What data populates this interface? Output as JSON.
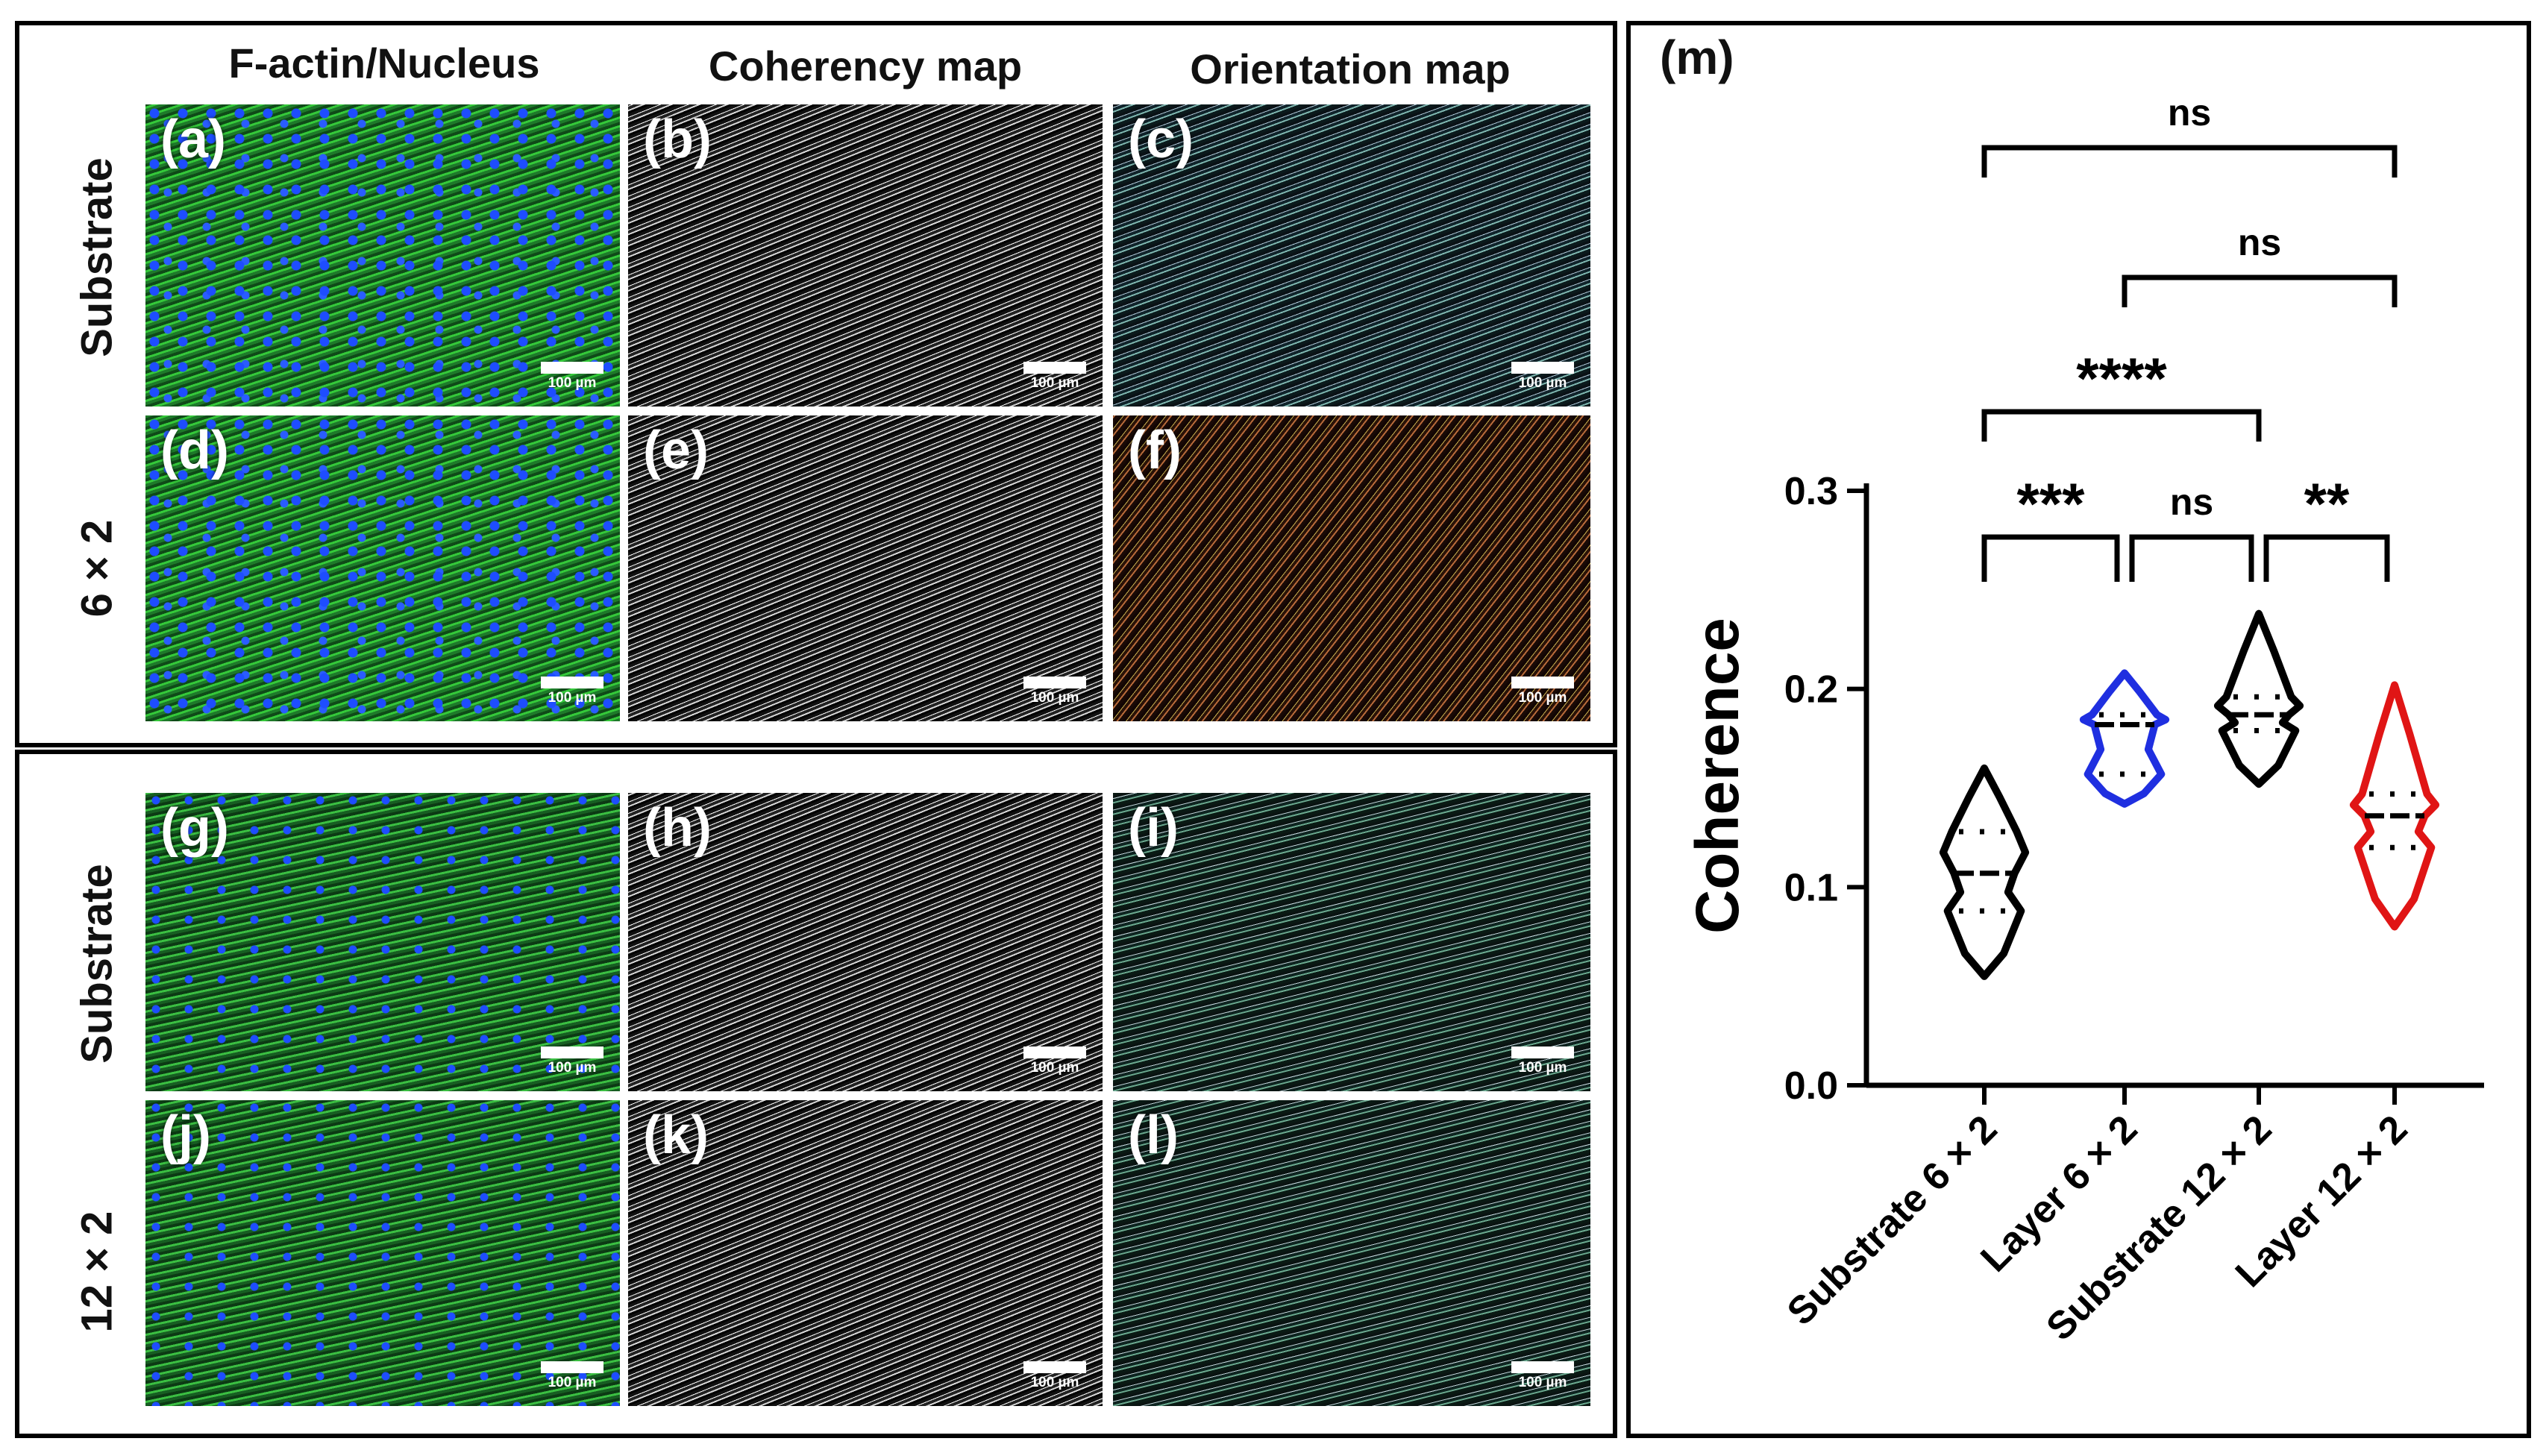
{
  "figure": {
    "column_titles": [
      "F-actin/Nucleus",
      "Coherency map",
      "Orientation map"
    ],
    "row_labels": [
      "Substrate",
      "6 × 2",
      "Substrate",
      "12 × 2"
    ],
    "panel_labels": [
      "(a)",
      "(b)",
      "(c)",
      "(d)",
      "(e)",
      "(f)",
      "(g)",
      "(h)",
      "(i)",
      "(j)",
      "(k)",
      "(l)"
    ],
    "scale_bar_text": "100 µm",
    "chart_panel_label": "(m)"
  },
  "chart_data": {
    "type": "violin",
    "ylabel": "Coherence",
    "xlabel": "",
    "ylim": [
      0.0,
      0.3
    ],
    "yticks": [
      "0.0",
      "0.1",
      "0.2",
      "0.3"
    ],
    "categories": [
      "Substrate 6 × 2",
      "Layer 6 × 2",
      "Substrate 12 × 2",
      "Layer 12 × 2"
    ],
    "colors": [
      "#000000",
      "#1f2fe0",
      "#000000",
      "#e01515"
    ],
    "series": [
      {
        "median": 0.107,
        "q1": 0.088,
        "q3": 0.128,
        "min": 0.055,
        "max": 0.16
      },
      {
        "median": 0.182,
        "q1": 0.157,
        "q3": 0.187,
        "min": 0.142,
        "max": 0.208
      },
      {
        "median": 0.187,
        "q1": 0.179,
        "q3": 0.196,
        "min": 0.152,
        "max": 0.238
      },
      {
        "median": 0.136,
        "q1": 0.12,
        "q3": 0.147,
        "min": 0.08,
        "max": 0.202
      }
    ],
    "significance": [
      {
        "from": 0,
        "to": 1,
        "label": "***"
      },
      {
        "from": 1,
        "to": 2,
        "label": "ns"
      },
      {
        "from": 2,
        "to": 3,
        "label": "**"
      },
      {
        "from": 0,
        "to": 2,
        "label": "****"
      },
      {
        "from": 1,
        "to": 3,
        "label": "ns"
      },
      {
        "from": 0,
        "to": 3,
        "label": "ns"
      }
    ]
  }
}
